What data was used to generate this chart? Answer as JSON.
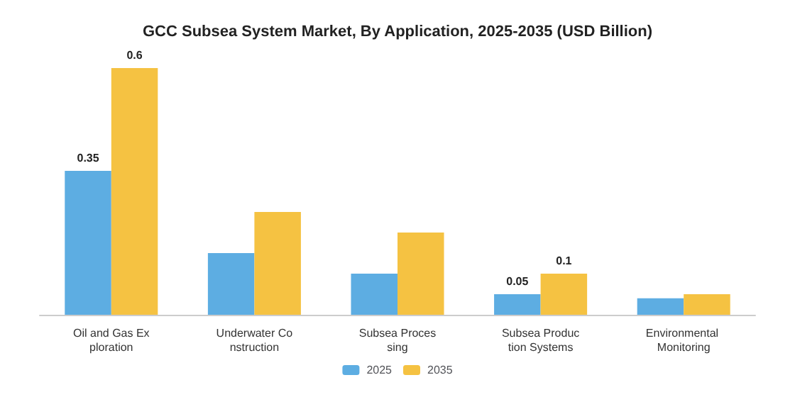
{
  "chart_data": {
    "type": "bar",
    "title": "GCC Subsea System Market, By Application, 2025-2035 (USD Billion)",
    "categories": [
      "Oil and Gas Exploration",
      "Underwater Construction",
      "Subsea Processing",
      "Subsea Production Systems",
      "Environmental Monitoring"
    ],
    "series": [
      {
        "name": "2025",
        "color": "#5dade2",
        "values": [
          0.35,
          0.15,
          0.1,
          0.05,
          0.04
        ],
        "value_labels": [
          "0.35",
          null,
          null,
          "0.05",
          null
        ]
      },
      {
        "name": "2035",
        "color": "#f5c242",
        "values": [
          0.6,
          0.25,
          0.2,
          0.1,
          0.05
        ],
        "value_labels": [
          "0.6",
          null,
          null,
          "0.1",
          null
        ]
      }
    ],
    "legend": "bottom"
  }
}
